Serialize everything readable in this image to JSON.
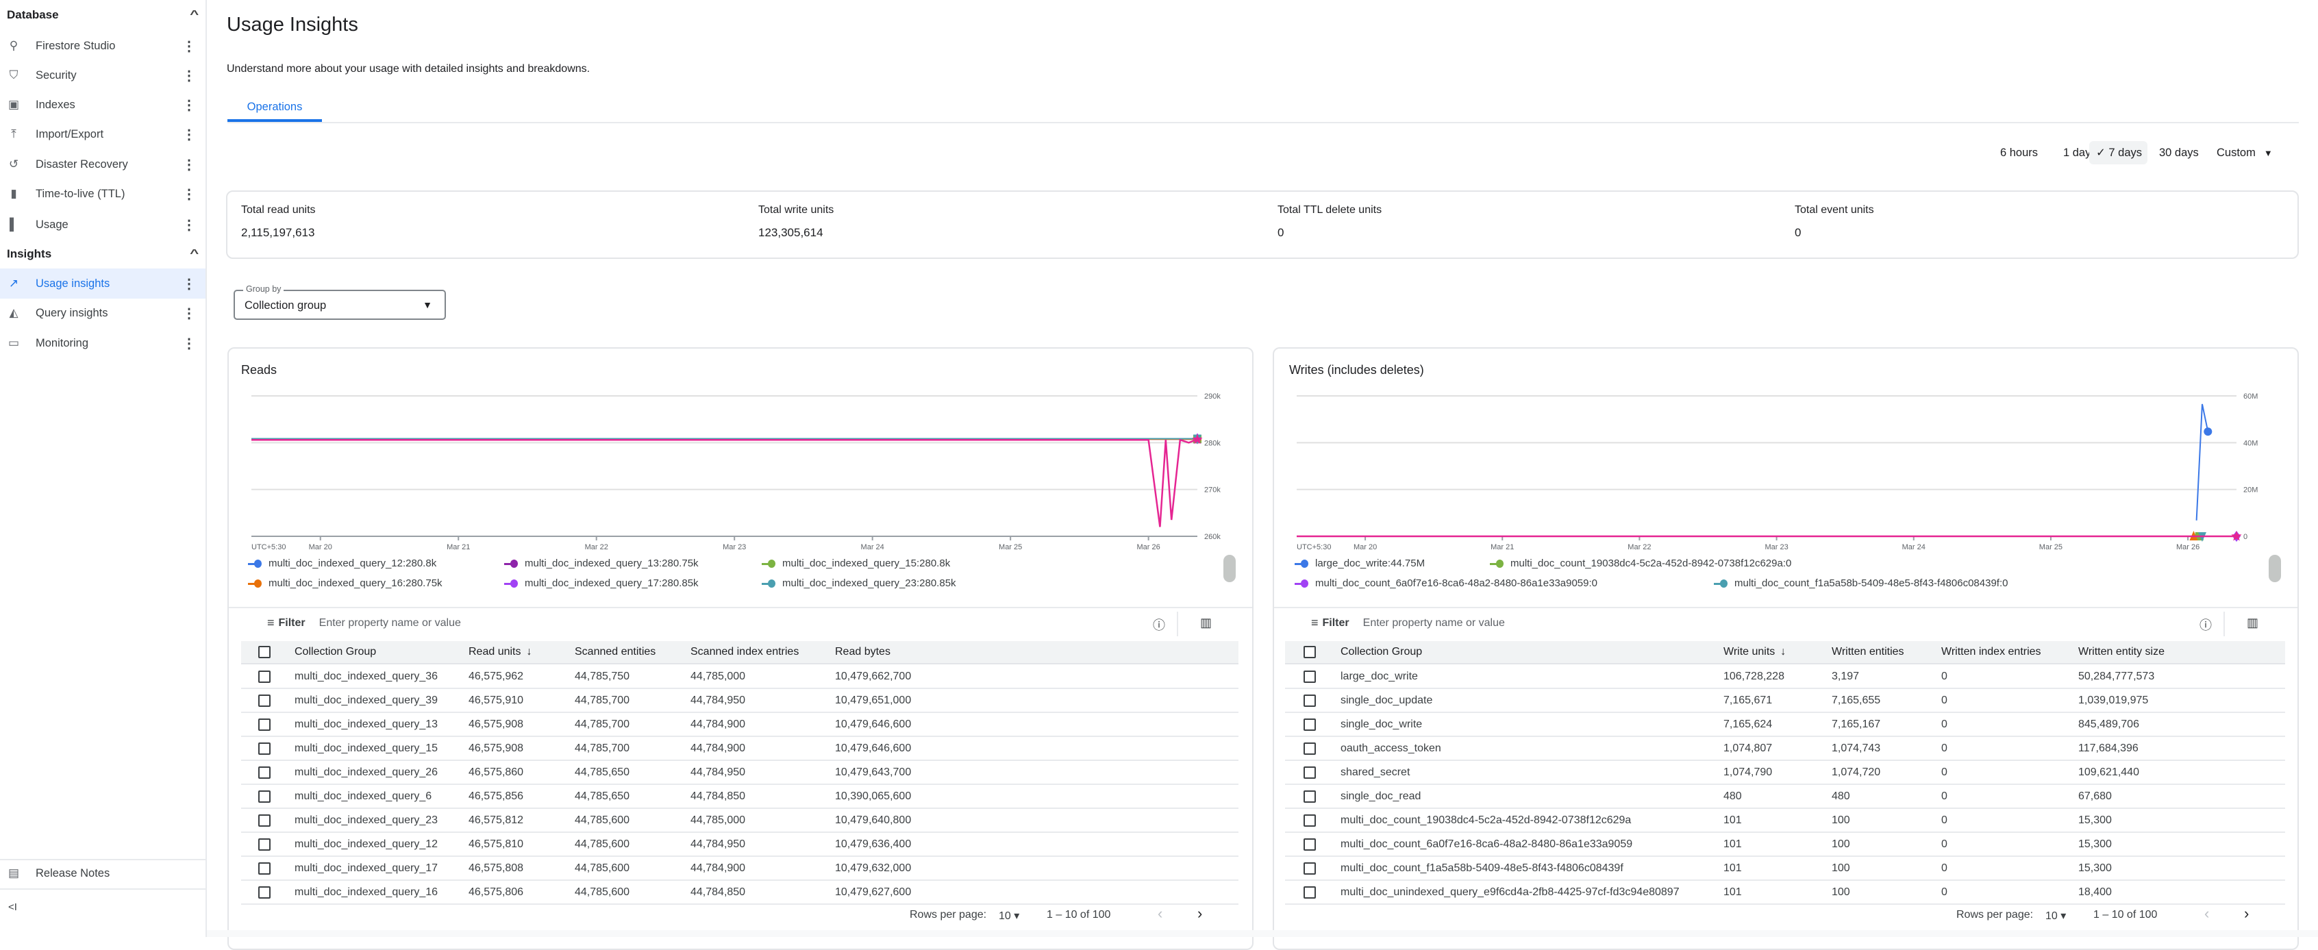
{
  "sidebar": {
    "database_header": "Database",
    "database_items": [
      {
        "label": "Firestore Studio",
        "icon": "search-icon"
      },
      {
        "label": "Security",
        "icon": "shield-icon"
      },
      {
        "label": "Indexes",
        "icon": "index-icon"
      },
      {
        "label": "Import/Export",
        "icon": "upload-icon"
      },
      {
        "label": "Disaster Recovery",
        "icon": "history-icon"
      },
      {
        "label": "Time-to-live (TTL)",
        "icon": "trash-icon"
      },
      {
        "label": "Usage",
        "icon": "bar-chart-icon"
      }
    ],
    "insights_header": "Insights",
    "insights_items": [
      {
        "label": "Usage insights",
        "icon": "trending-icon",
        "active": true
      },
      {
        "label": "Query insights",
        "icon": "query-chart-icon"
      },
      {
        "label": "Monitoring",
        "icon": "monitor-icon"
      }
    ],
    "release_notes": "Release Notes",
    "collapse": "<I"
  },
  "header": {
    "title": "Usage Insights",
    "subtitle": "Understand more about your usage with detailed insights and breakdowns.",
    "tabs": [
      {
        "label": "Operations",
        "active": true
      }
    ]
  },
  "time_range": {
    "options": [
      "6 hours",
      "1 day",
      "7 days",
      "30 days",
      "Custom"
    ],
    "selected": "7 days"
  },
  "summary": [
    {
      "label": "Total read units",
      "value": "2,115,197,613"
    },
    {
      "label": "Total write units",
      "value": "123,305,614"
    },
    {
      "label": "Total TTL delete units",
      "value": "0"
    },
    {
      "label": "Total event units",
      "value": "0"
    }
  ],
  "group_by": {
    "label": "Group by",
    "value": "Collection group"
  },
  "colors": {
    "accent": "#1a73e8",
    "active_bg": "#e8f0fe"
  },
  "chart_data": [
    {
      "type": "line",
      "title": "Reads",
      "timezone_label": "UTC+5:30",
      "xlim": [
        "Mar 19 12:00",
        "Mar 26 08:30"
      ],
      "x_ticks": [
        "Mar 20",
        "Mar 21",
        "Mar 22",
        "Mar 23",
        "Mar 24",
        "Mar 25",
        "Mar 26"
      ],
      "ylim": [
        260000,
        290000
      ],
      "y_ticks": [
        {
          "value": 260000,
          "label": "260k"
        },
        {
          "value": 270000,
          "label": "270k"
        },
        {
          "value": 280000,
          "label": "280k"
        },
        {
          "value": 290000,
          "label": "290k"
        }
      ],
      "grid": true,
      "legend_position": "bottom",
      "series": [
        {
          "name": "multi_doc_indexed_query_12",
          "legend_value": "280.8k",
          "color": "#3b78e7",
          "marker": "circle",
          "points": [
            [
              "Mar 19 12:00",
              280800
            ],
            [
              "Mar 26 08:30",
              280800
            ]
          ]
        },
        {
          "name": "multi_doc_indexed_query_13",
          "legend_value": "280.75k",
          "color": "#8e24aa",
          "marker": "square",
          "points": [
            [
              "Mar 19 12:00",
              280750
            ],
            [
              "Mar 26 08:30",
              280750
            ]
          ]
        },
        {
          "name": "multi_doc_indexed_query_15",
          "legend_value": "280.8k",
          "color": "#7cb342",
          "marker": "square",
          "points": [
            [
              "Mar 19 12:00",
              280800
            ],
            [
              "Mar 26 08:30",
              280800
            ]
          ]
        },
        {
          "name": "multi_doc_indexed_query_16",
          "legend_value": "280.75k",
          "color": "#e8710a",
          "marker": "plus",
          "points": [
            [
              "Mar 19 12:00",
              280750
            ],
            [
              "Mar 26 08:30",
              280750
            ]
          ]
        },
        {
          "name": "multi_doc_indexed_query_17",
          "legend_value": "280.85k",
          "color": "#a142f4",
          "marker": "diamond",
          "points": [
            [
              "Mar 19 12:00",
              280850
            ],
            [
              "Mar 26 08:30",
              280850
            ]
          ]
        },
        {
          "name": "multi_doc_indexed_query_23",
          "legend_value": "280.85k",
          "color": "#4a9fb0",
          "marker": "triangle-down",
          "points": [
            [
              "Mar 19 12:00",
              280850
            ],
            [
              "Mar 26 08:30",
              280850
            ]
          ]
        },
        {
          "color": "#e52592",
          "marker": "star",
          "points": [
            [
              "Mar 19 12:00",
              280600
            ],
            [
              "Mar 26 00:00",
              280600
            ],
            [
              "Mar 26 02:00",
              262000
            ],
            [
              "Mar 26 03:00",
              280600
            ],
            [
              "Mar 26 04:00",
              263500
            ],
            [
              "Mar 26 05:30",
              280600
            ],
            [
              "Mar 26 07:00",
              280000
            ],
            [
              "Mar 26 08:30",
              280700
            ]
          ]
        }
      ]
    },
    {
      "type": "line",
      "title": "Writes (includes deletes)",
      "timezone_label": "UTC+5:30",
      "xlim": [
        "Mar 19 12:00",
        "Mar 26 08:30"
      ],
      "x_ticks": [
        "Mar 20",
        "Mar 21",
        "Mar 22",
        "Mar 23",
        "Mar 24",
        "Mar 25",
        "Mar 26"
      ],
      "ylim": [
        0,
        60000000
      ],
      "y_ticks": [
        {
          "value": 0,
          "label": "0"
        },
        {
          "value": 20000000,
          "label": "20M"
        },
        {
          "value": 40000000,
          "label": "40M"
        },
        {
          "value": 60000000,
          "label": "60M"
        }
      ],
      "grid": true,
      "legend_position": "bottom",
      "series": [
        {
          "name": "large_doc_write",
          "legend_value": "44.75M",
          "color": "#3b78e7",
          "marker": "circle",
          "points": [
            [
              "Mar 26 01:30",
              6800000
            ],
            [
              "Mar 26 02:30",
              56500000
            ],
            [
              "Mar 26 03:30",
              44750000
            ]
          ]
        },
        {
          "name": "multi_doc_count_19038dc4-5c2a-452d-8942-0738f12c629a",
          "legend_value": "0",
          "color": "#7cb342",
          "marker": "square",
          "points": [
            [
              "Mar 19 12:00",
              0
            ],
            [
              "Mar 26 02:00",
              0
            ]
          ]
        },
        {
          "name": "multi_doc_count_6a0f7e16-8ca6-48a2-8480-86a1e33a9059",
          "legend_value": "0",
          "color": "#a142f4",
          "marker": "diamond",
          "points": [
            [
              "Mar 19 12:00",
              0
            ],
            [
              "Mar 26 08:30",
              0
            ]
          ]
        },
        {
          "name": "multi_doc_count_f1a5a58b-5409-48e5-8f43-f4806c08439f",
          "legend_value": "0",
          "color": "#4a9fb0",
          "marker": "triangle-down",
          "points": [
            [
              "Mar 19 12:00",
              0
            ],
            [
              "Mar 26 02:30",
              0
            ]
          ]
        },
        {
          "color": "#e8710a",
          "marker": "triangle",
          "points": [
            [
              "Mar 19 12:00",
              0
            ],
            [
              "Mar 26 01:00",
              0
            ]
          ]
        },
        {
          "color": "#e52592",
          "marker": "star",
          "points": [
            [
              "Mar 19 12:00",
              0
            ],
            [
              "Mar 26 08:30",
              0
            ]
          ]
        }
      ]
    }
  ],
  "reads_table": {
    "filter_label": "Filter",
    "filter_placeholder": "Enter property name or value",
    "columns": [
      "Collection Group",
      "Read units",
      "Scanned entities",
      "Scanned index entries",
      "Read bytes"
    ],
    "sort_indicator": "↓",
    "rows": [
      [
        "multi_doc_indexed_query_36",
        "46,575,962",
        "44,785,750",
        "44,785,000",
        "10,479,662,700"
      ],
      [
        "multi_doc_indexed_query_39",
        "46,575,910",
        "44,785,700",
        "44,784,950",
        "10,479,651,000"
      ],
      [
        "multi_doc_indexed_query_13",
        "46,575,908",
        "44,785,700",
        "44,784,900",
        "10,479,646,600"
      ],
      [
        "multi_doc_indexed_query_15",
        "46,575,908",
        "44,785,700",
        "44,784,900",
        "10,479,646,600"
      ],
      [
        "multi_doc_indexed_query_26",
        "46,575,860",
        "44,785,650",
        "44,784,950",
        "10,479,643,700"
      ],
      [
        "multi_doc_indexed_query_6",
        "46,575,856",
        "44,785,650",
        "44,784,850",
        "10,390,065,600"
      ],
      [
        "multi_doc_indexed_query_23",
        "46,575,812",
        "44,785,600",
        "44,785,000",
        "10,479,640,800"
      ],
      [
        "multi_doc_indexed_query_12",
        "46,575,810",
        "44,785,600",
        "44,784,950",
        "10,479,636,400"
      ],
      [
        "multi_doc_indexed_query_17",
        "46,575,808",
        "44,785,600",
        "44,784,900",
        "10,479,632,000"
      ],
      [
        "multi_doc_indexed_query_16",
        "46,575,806",
        "44,785,600",
        "44,784,850",
        "10,479,627,600"
      ]
    ],
    "pagination": {
      "rows_per_page_label": "Rows per page:",
      "rows_per_page": "10",
      "range": "1 – 10 of 100"
    }
  },
  "writes_table": {
    "filter_label": "Filter",
    "filter_placeholder": "Enter property name or value",
    "columns": [
      "Collection Group",
      "Write units",
      "Written entities",
      "Written index entries",
      "Written entity size"
    ],
    "sort_indicator": "↓",
    "rows": [
      [
        "large_doc_write",
        "106,728,228",
        "3,197",
        "0",
        "50,284,777,573"
      ],
      [
        "single_doc_update",
        "7,165,671",
        "7,165,655",
        "0",
        "1,039,019,975"
      ],
      [
        "single_doc_write",
        "7,165,624",
        "7,165,167",
        "0",
        "845,489,706"
      ],
      [
        "oauth_access_token",
        "1,074,807",
        "1,074,743",
        "0",
        "117,684,396"
      ],
      [
        "shared_secret",
        "1,074,790",
        "1,074,720",
        "0",
        "109,621,440"
      ],
      [
        "single_doc_read",
        "480",
        "480",
        "0",
        "67,680"
      ],
      [
        "multi_doc_count_19038dc4-5c2a-452d-8942-0738f12c629a",
        "101",
        "100",
        "0",
        "15,300"
      ],
      [
        "multi_doc_count_6a0f7e16-8ca6-48a2-8480-86a1e33a9059",
        "101",
        "100",
        "0",
        "15,300"
      ],
      [
        "multi_doc_count_f1a5a58b-5409-48e5-8f43-f4806c08439f",
        "101",
        "100",
        "0",
        "15,300"
      ],
      [
        "multi_doc_unindexed_query_e9f6cd4a-2fb8-4425-97cf-fd3c94e80897",
        "101",
        "100",
        "0",
        "18,400"
      ]
    ],
    "pagination": {
      "rows_per_page_label": "Rows per page:",
      "rows_per_page": "10",
      "range": "1 – 10 of 100"
    }
  }
}
